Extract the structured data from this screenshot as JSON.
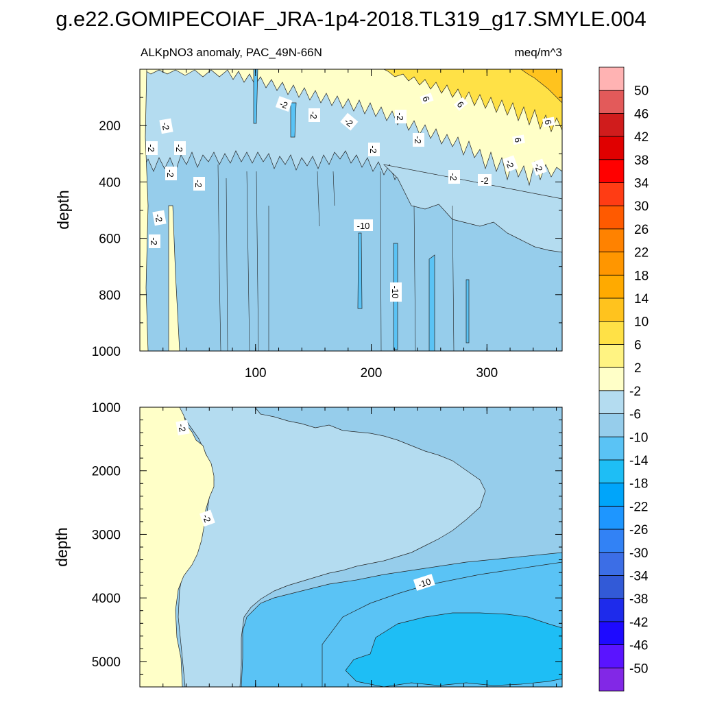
{
  "figure_title": "g.e22.GOMIPECOIAF_JRA-1p4-2018.TL319_g17.SMYLE.004",
  "colors": {
    "levels_desc": [
      "#FFB3B3",
      "#E35A5A",
      "#D01C1C",
      "#E00000",
      "#FF0000",
      "#FF3C14",
      "#FF5A00",
      "#FF8200",
      "#FF9600",
      "#FFAA00",
      "#FFC31E",
      "#FFE146",
      "#FFF382",
      "#FFFFC8",
      "#B4DCF0",
      "#96CDEB",
      "#5AC3F5",
      "#1EBEF5",
      "#00A5FA",
      "#1E96FF",
      "#3282F5",
      "#3C6EE6",
      "#325AD7",
      "#1E2BEB",
      "#1E0AFF",
      "#5A14FF",
      "#8228E6"
    ],
    "contour_line": "#222222"
  },
  "colorbar": {
    "labels": [
      "50",
      "46",
      "42",
      "38",
      "34",
      "30",
      "26",
      "22",
      "18",
      "14",
      "10",
      "6",
      "2",
      "-2",
      "-6",
      "-10",
      "-14",
      "-18",
      "-22",
      "-26",
      "-30",
      "-34",
      "-38",
      "-42",
      "-46",
      "-50"
    ]
  },
  "chart_data": [
    {
      "type": "heatmap",
      "subtitle_left": "ALKpNO3 anomaly, PAC_49N-66N",
      "subtitle_right": "meq/m^3",
      "ylabel": "depth",
      "xlim": [
        0,
        365
      ],
      "ylim": [
        0,
        1000
      ],
      "y_reversed": true,
      "x_ticks": [
        "100",
        "200",
        "300"
      ],
      "y_ticks": [
        "200",
        "400",
        "600",
        "800",
        "1000"
      ],
      "contour_labels": [
        "-2",
        "-2",
        "-2",
        "-2",
        "-2",
        "-2",
        "-2",
        "-2",
        "-2",
        "-2",
        "-2",
        "-2",
        "-2",
        "-2",
        "-2",
        "-2",
        "-10",
        "-10",
        "6",
        "6",
        "6"
      ],
      "levels_present": [
        {
          "level": "2",
          "region": "near-surface, days 0-300"
        },
        {
          "level": "6",
          "region": "surface, days 250-365"
        },
        {
          "level": "-2",
          "region": "upper 300 m, patchy"
        },
        {
          "level": "-6",
          "region": "most of 300-1000 m"
        },
        {
          "level": "-10",
          "region": "thin columns near days 100, 195, 225, 255, 285"
        }
      ]
    },
    {
      "type": "heatmap",
      "ylabel": "depth",
      "xlim": [
        0,
        365
      ],
      "ylim": [
        1000,
        5400
      ],
      "y_reversed": true,
      "y_ticks": [
        "1000",
        "2000",
        "3000",
        "4000",
        "5000"
      ],
      "contour_labels": [
        "-2",
        "-2",
        "-10"
      ],
      "levels_present": [
        {
          "level": "2",
          "region": "days 0-60, full depth"
        },
        {
          "level": "-2",
          "region": "wedge to day ~300 at 2400 m"
        },
        {
          "level": "-6",
          "region": "upper and middle depths"
        },
        {
          "level": "-10",
          "region": "below ~3500 m"
        },
        {
          "level": "-14",
          "region": "core near days 180-365, 4300-5300 m"
        }
      ]
    }
  ]
}
